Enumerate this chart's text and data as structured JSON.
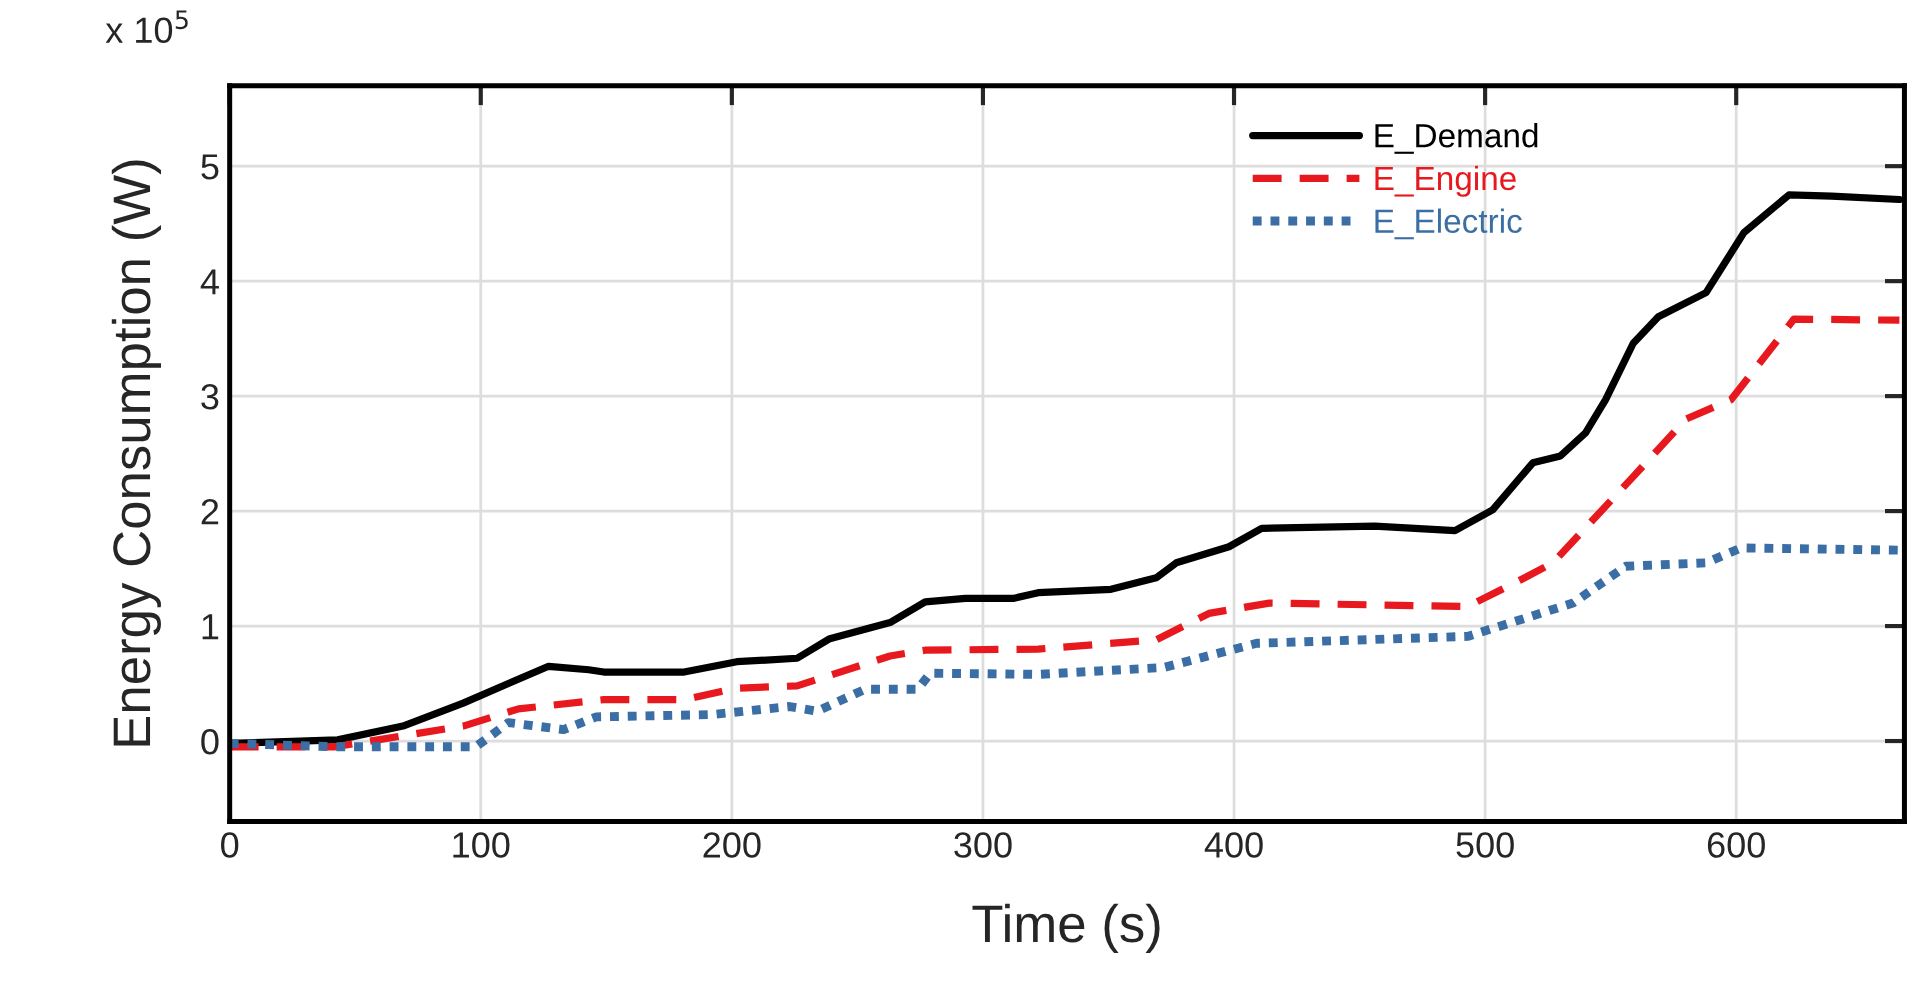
{
  "chart_data": {
    "type": "line",
    "xlabel": "Time (s)",
    "ylabel": "Energy Consumption (W)",
    "annotations": [
      "x 10$^{5}$"
    ],
    "xlim": [
      0,
      667
    ],
    "xticks": [
      0,
      100,
      200,
      300,
      400,
      500,
      600
    ],
    "ylim": [
      -0.7,
      5.7
    ],
    "yticks": [
      0,
      1,
      2,
      3,
      4,
      5
    ],
    "grid": true,
    "legend": "top right",
    "marker": "none",
    "series": [
      {
        "name": "E_Demand",
        "color": "#000000",
        "line_style": "solid",
        "x": [
          0,
          43,
          69,
          93,
          111,
          127,
          143,
          149,
          181,
          202,
          226,
          239,
          263,
          277,
          293,
          312,
          322,
          351,
          369,
          377,
          398,
          411,
          456,
          488,
          503,
          519,
          530,
          540,
          548,
          559,
          569,
          588,
          603,
          621,
          638,
          665
        ],
        "values": [
          -0.02,
          0.01,
          0.13,
          0.33,
          0.5,
          0.65,
          0.62,
          0.6,
          0.6,
          0.69,
          0.72,
          0.89,
          1.03,
          1.21,
          1.24,
          1.24,
          1.29,
          1.32,
          1.42,
          1.55,
          1.69,
          1.85,
          1.87,
          1.83,
          2.01,
          2.42,
          2.48,
          2.68,
          2.97,
          3.46,
          3.69,
          3.9,
          4.42,
          4.75,
          4.74,
          4.71
        ]
      },
      {
        "name": "E_Engine",
        "color": "#e8191e",
        "line_style": "dashed",
        "x": [
          0,
          42,
          93,
          115,
          149,
          181,
          202,
          226,
          263,
          277,
          322,
          369,
          390,
          414,
          493,
          514,
          527,
          559,
          580,
          598,
          623,
          665
        ],
        "values": [
          -0.05,
          -0.05,
          0.13,
          0.28,
          0.36,
          0.36,
          0.46,
          0.48,
          0.74,
          0.79,
          0.8,
          0.88,
          1.11,
          1.2,
          1.17,
          1.4,
          1.55,
          2.3,
          2.8,
          2.97,
          3.67,
          3.66
        ]
      },
      {
        "name": "E_Electric",
        "color": "#3a6ea5",
        "line_style": "dotted",
        "x": [
          0,
          42,
          98,
          111,
          133,
          146,
          192,
          223,
          234,
          253,
          274,
          279,
          322,
          372,
          409,
          493,
          535,
          556,
          588,
          602,
          665
        ],
        "values": [
          -0.02,
          -0.05,
          -0.05,
          0.16,
          0.1,
          0.21,
          0.23,
          0.3,
          0.26,
          0.45,
          0.45,
          0.59,
          0.58,
          0.64,
          0.85,
          0.91,
          1.2,
          1.52,
          1.55,
          1.68,
          1.66
        ]
      }
    ]
  }
}
